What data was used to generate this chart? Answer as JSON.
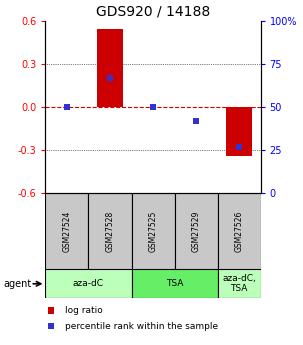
{
  "title": "GDS920 / 14188",
  "samples": [
    "GSM27524",
    "GSM27528",
    "GSM27525",
    "GSM27529",
    "GSM27526"
  ],
  "log_ratios": [
    0.0,
    0.54,
    0.0,
    0.0,
    -0.34
  ],
  "percentile_ranks": [
    50,
    67,
    50,
    42,
    27
  ],
  "ylim_left": [
    -0.6,
    0.6
  ],
  "ylim_right": [
    0,
    100
  ],
  "yticks_left": [
    -0.6,
    -0.3,
    0.0,
    0.3,
    0.6
  ],
  "yticks_right": [
    0,
    25,
    50,
    75,
    100
  ],
  "bar_color": "#cc0000",
  "dot_color": "#3333cc",
  "agent_groups": [
    {
      "label": "aza-dC",
      "span": [
        0,
        2
      ],
      "color": "#bbffbb"
    },
    {
      "label": "TSA",
      "span": [
        2,
        4
      ],
      "color": "#66ee66"
    },
    {
      "label": "aza-dC,\nTSA",
      "span": [
        4,
        5
      ],
      "color": "#bbffbb"
    }
  ],
  "bg_color": "#ffffff",
  "zero_line_color": "#cc0000",
  "sample_bg_color": "#c8c8c8",
  "bar_width": 0.6,
  "dot_size": 4
}
